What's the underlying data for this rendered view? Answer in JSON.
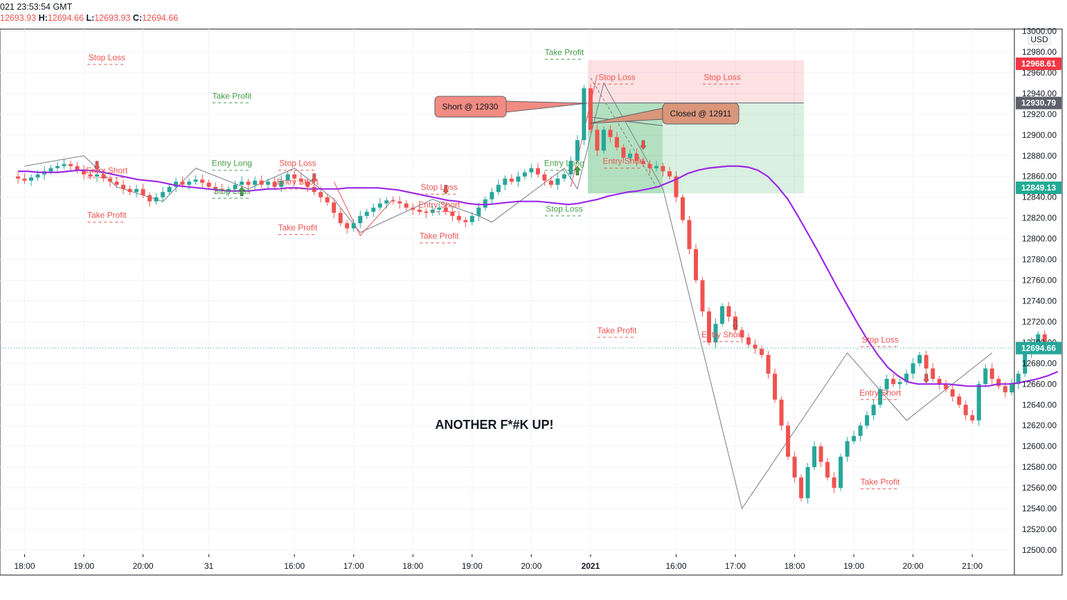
{
  "header": {
    "datetime": "021 23:53:54 GMT",
    "o_label": "",
    "o_value": "12693.93",
    "h_label": "H:",
    "h_value": "12694.66",
    "l_label": "L:",
    "l_value": "12693.93",
    "c_label": "C:",
    "c_value": "12694.66"
  },
  "chart_data": {
    "type": "candlestick",
    "currency": "USD",
    "ylim": [
      12500,
      13000
    ],
    "y_ticks": [
      12500,
      12520,
      12540,
      12560,
      12580,
      12600,
      12620,
      12640,
      12660,
      12680,
      12700,
      12720,
      12740,
      12760,
      12780,
      12800,
      12820,
      12840,
      12860,
      12880,
      12900,
      12920,
      12940,
      12960,
      12980,
      13000
    ],
    "y_tick_labels": [
      "12500.00",
      "12520.00",
      "12540.00",
      "12560.00",
      "12580.00",
      "12600.00",
      "12620.00",
      "12640.00",
      "12660.00",
      "12680.00",
      "12700.00",
      "12720.00",
      "12740.00",
      "12760.00",
      "12780.00",
      "12800.00",
      "12820.00",
      "12840.00",
      "12860.00",
      "12880.00",
      "12900.00",
      "12920.00",
      "12940.00",
      "12960.00",
      "12980.00",
      "13000.00"
    ],
    "x_ticks": [
      {
        "i": 1,
        "label": "18:00",
        "bold": false
      },
      {
        "i": 10,
        "label": "19:00",
        "bold": false
      },
      {
        "i": 19,
        "label": "20:00",
        "bold": false
      },
      {
        "i": 29,
        "label": "31",
        "bold": false
      },
      {
        "i": 42,
        "label": "16:00",
        "bold": false
      },
      {
        "i": 51,
        "label": "17:00",
        "bold": false
      },
      {
        "i": 60,
        "label": "18:00",
        "bold": false
      },
      {
        "i": 69,
        "label": "19:00",
        "bold": false
      },
      {
        "i": 78,
        "label": "20:00",
        "bold": false
      },
      {
        "i": 87,
        "label": "2021",
        "bold": true
      },
      {
        "i": 100,
        "label": "16:00",
        "bold": false
      },
      {
        "i": 109,
        "label": "17:00",
        "bold": false
      },
      {
        "i": 118,
        "label": "18:00",
        "bold": false
      },
      {
        "i": 127,
        "label": "19:00",
        "bold": false
      },
      {
        "i": 136,
        "label": "20:00",
        "bold": false
      },
      {
        "i": 145,
        "label": "21:00",
        "bold": false
      }
    ],
    "price_labels": [
      {
        "label": "12968.61",
        "value": 12968.61,
        "color": "#f23645"
      },
      {
        "label": "12930.79",
        "value": 12930.79,
        "color": "#5d606b"
      },
      {
        "label": "12849.13",
        "value": 12849.13,
        "color": "#22ab94"
      },
      {
        "label": "12694.66",
        "value": 12694.66,
        "color": "#26a69a"
      }
    ],
    "candles_close": [
      12860,
      12858,
      12856,
      12859,
      12862,
      12865,
      12868,
      12870,
      12872,
      12870,
      12866,
      12862,
      12860,
      12862,
      12858,
      12855,
      12852,
      12848,
      12845,
      12848,
      12842,
      12836,
      12840,
      12845,
      12850,
      12855,
      12852,
      12855,
      12857,
      12854,
      12850,
      12848,
      12846,
      12848,
      12852,
      12855,
      12852,
      12856,
      12852,
      12855,
      12850,
      12856,
      12862,
      12858,
      12855,
      12850,
      12845,
      12840,
      12835,
      12825,
      12815,
      12810,
      12815,
      12822,
      12826,
      12830,
      12834,
      12837,
      12836,
      12834,
      12830,
      12828,
      12826,
      12825,
      12828,
      12830,
      12826,
      12822,
      12818,
      12816,
      12822,
      12830,
      12838,
      12845,
      12852,
      12858,
      12855,
      12860,
      12864,
      12868,
      12862,
      12856,
      12852,
      12858,
      12862,
      12875,
      12895,
      12945,
      12905,
      12885,
      12905,
      12898,
      12888,
      12878,
      12882,
      12875,
      12872,
      12868,
      12870,
      12865,
      12860,
      12840,
      12818,
      12790,
      12760,
      12730,
      12700,
      12718,
      12735,
      12725,
      12712,
      12705,
      12698,
      12694,
      12688,
      12670,
      12645,
      12620,
      12590,
      12570,
      12550,
      12580,
      12600,
      12585,
      12570,
      12560,
      12590,
      12605,
      12610,
      12620,
      12630,
      12640,
      12655,
      12665,
      12660,
      12662,
      12670,
      12680,
      12688,
      12675,
      12665,
      12660,
      12655,
      12648,
      12640,
      12630,
      12625,
      12660,
      12675,
      12665,
      12658,
      12652,
      12660,
      12670,
      12690,
      12700,
      12708,
      12695,
      12694.66
    ],
    "ema_values": [
      12865,
      12865,
      12864,
      12864,
      12864,
      12865,
      12866,
      12866,
      12865,
      12863,
      12861,
      12859,
      12857,
      12856,
      12855,
      12853,
      12851,
      12850,
      12849,
      12848,
      12847,
      12846,
      12846,
      12846,
      12847,
      12848,
      12848,
      12849,
      12849,
      12848,
      12848,
      12848,
      12848,
      12849,
      12849,
      12849,
      12849,
      12848,
      12847,
      12845,
      12843,
      12841,
      12839,
      12837,
      12836,
      12834,
      12833,
      12833,
      12834,
      12835,
      12836,
      12836,
      12836,
      12835,
      12834,
      12833,
      12834,
      12836,
      12838,
      12841,
      12843,
      12845,
      12846,
      12848,
      12850,
      12854,
      12858,
      12863,
      12866,
      12868,
      12869,
      12870,
      12870,
      12869,
      12866,
      12860,
      12850,
      12838,
      12822,
      12805,
      12788,
      12770,
      12752,
      12735,
      12718,
      12702,
      12688,
      12676,
      12668,
      12662,
      12660,
      12660,
      12660,
      12660,
      12659,
      12658,
      12658,
      12658,
      12660,
      12660,
      12661,
      12663,
      12665,
      12668,
      12672
    ],
    "ema_color": "#9c27e8",
    "zigzag": [
      [
        1,
        12870
      ],
      [
        10,
        12880
      ],
      [
        15,
        12850
      ],
      [
        22,
        12836
      ],
      [
        27,
        12868
      ],
      [
        35,
        12848
      ],
      [
        42,
        12868
      ],
      [
        48,
        12838
      ],
      [
        52,
        12806
      ],
      [
        63,
        12838
      ],
      [
        70,
        12822
      ],
      [
        72,
        12816
      ],
      [
        83,
        12868
      ],
      [
        85,
        12848
      ],
      [
        89,
        12950
      ],
      [
        98,
        12848
      ],
      [
        110,
        12540
      ],
      [
        126,
        12690
      ],
      [
        135,
        12625
      ],
      [
        148,
        12690
      ]
    ],
    "annotations_text": {
      "center_title": "ANOTHER F*#K UP!",
      "short_callout": "Short @ 12930",
      "closed_callout": "Closed @ 12911",
      "labels": [
        {
          "text": "Stop Loss",
          "i": 13.5,
          "y": 12972,
          "color": "#ef5350"
        },
        {
          "text": "Entry Short",
          "i": 13.5,
          "y": 12863,
          "color": "#ef5350"
        },
        {
          "text": "Take Profit",
          "i": 13.5,
          "y": 12820,
          "color": "#ef5350"
        },
        {
          "text": "Take Profit",
          "i": 32.5,
          "y": 12935,
          "color": "#43a047"
        },
        {
          "text": "Entry Long",
          "i": 32.5,
          "y": 12870,
          "color": "#43a047"
        },
        {
          "text": "Stop Loss",
          "i": 32.5,
          "y": 12843,
          "color": "#43a047"
        },
        {
          "text": "Stop Loss",
          "i": 42.5,
          "y": 12870,
          "color": "#ef5350"
        },
        {
          "text": "Entry Short",
          "i": 42.5,
          "y": 12852,
          "color": "#ef5350"
        },
        {
          "text": "Take Profit",
          "i": 42.5,
          "y": 12808,
          "color": "#ef5350"
        },
        {
          "text": "Stop Loss",
          "i": 64,
          "y": 12847,
          "color": "#ef5350"
        },
        {
          "text": "Entry Short",
          "i": 64,
          "y": 12830,
          "color": "#ef5350"
        },
        {
          "text": "Take Profit",
          "i": 64,
          "y": 12800,
          "color": "#ef5350"
        },
        {
          "text": "Take Profit",
          "i": 83,
          "y": 12977,
          "color": "#43a047"
        },
        {
          "text": "Entry Long",
          "i": 83,
          "y": 12870,
          "color": "#43a047"
        },
        {
          "text": "Stop Loss",
          "i": 83,
          "y": 12826,
          "color": "#43a047"
        },
        {
          "text": "Stop Loss",
          "i": 91,
          "y": 12953,
          "color": "#ef5350"
        },
        {
          "text": "Entry Short",
          "i": 92,
          "y": 12872,
          "color": "#ef5350"
        },
        {
          "text": "Stop Loss",
          "i": 107,
          "y": 12953,
          "color": "#ef5350"
        },
        {
          "text": "Take Profit",
          "i": 91,
          "y": 12709,
          "color": "#ef5350"
        },
        {
          "text": "Entry Short",
          "i": 107,
          "y": 12705,
          "color": "#ef5350"
        },
        {
          "text": "Stop Loss",
          "i": 131,
          "y": 12700,
          "color": "#ef5350"
        },
        {
          "text": "Entry Short",
          "i": 131,
          "y": 12649,
          "color": "#ef5350"
        },
        {
          "text": "Take Profit",
          "i": 131,
          "y": 12563,
          "color": "#ef5350"
        }
      ]
    },
    "position_box": {
      "entry": 12930.79,
      "stop": 12968.61,
      "target": 12849.13
    }
  }
}
